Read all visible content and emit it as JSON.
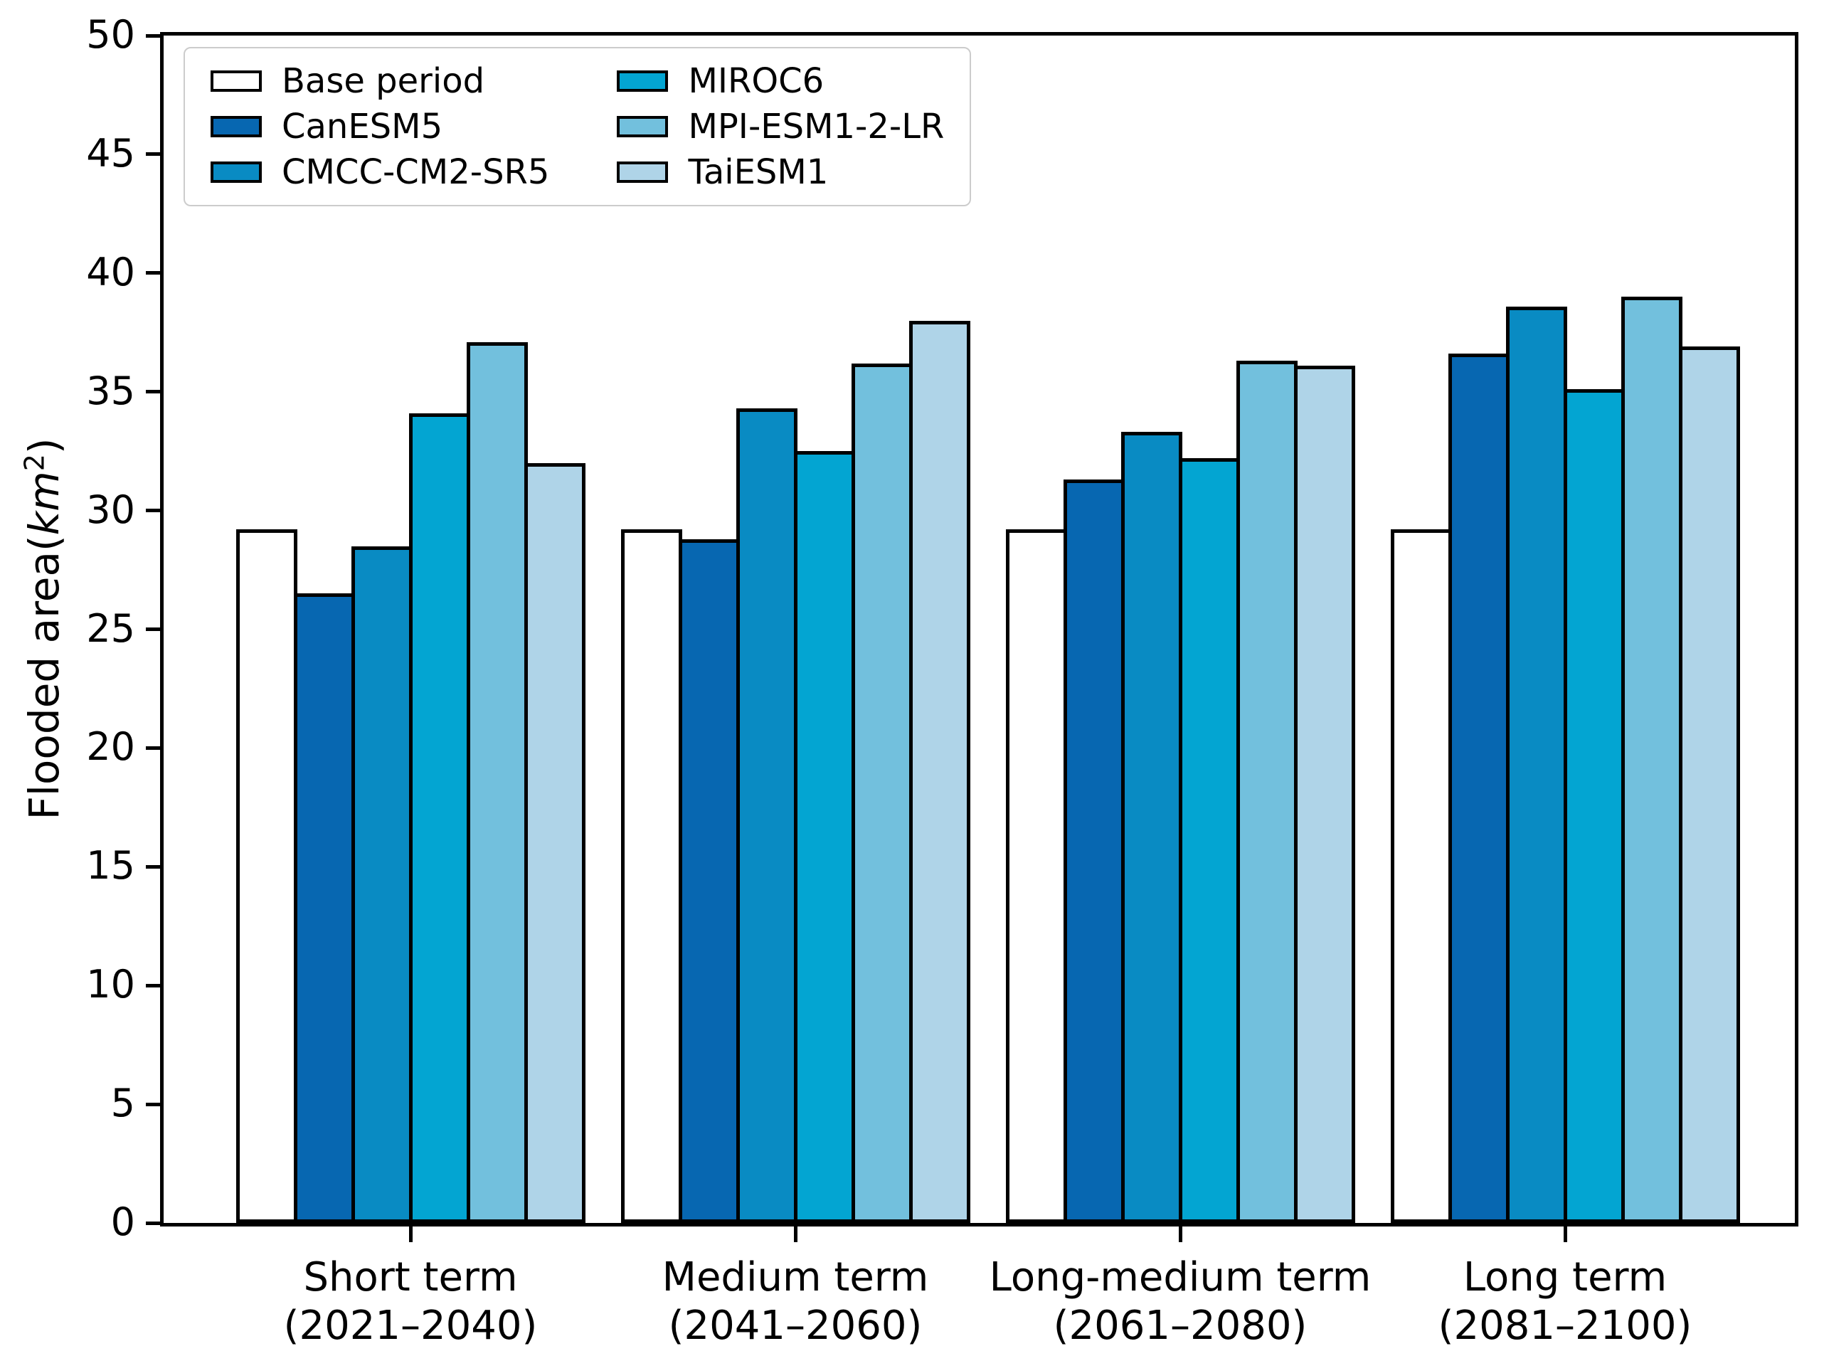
{
  "figure": {
    "background": "#ffffff"
  },
  "axis": {
    "y_label_prefix": "Flooded area(",
    "y_label_unit": "km",
    "y_label_exponent": "2",
    "y_label_suffix": ")",
    "y_ticks": [
      0,
      5,
      10,
      15,
      20,
      25,
      30,
      35,
      40,
      45,
      50
    ],
    "y_min": 0,
    "y_max": 50
  },
  "chart_data": {
    "type": "bar",
    "title": "",
    "xlabel": "",
    "ylabel": "Flooded area(km2)",
    "ylim": [
      0,
      50
    ],
    "grid": false,
    "legend_position": "upper left",
    "bar_edge_color": "#000000",
    "categories": [
      "Short term (2021–2040)",
      "Medium term (2041–2060)",
      "Long-medium term (2061–2080)",
      "Long term (2081–2100)"
    ],
    "category_lines": [
      [
        "Short term",
        "(2021–2040)"
      ],
      [
        "Medium term",
        "(2041–2060)"
      ],
      [
        "Long-medium term",
        "(2061–2080)"
      ],
      [
        "Long term",
        "(2081–2100)"
      ]
    ],
    "series": [
      {
        "name": "Base period",
        "color": "#ffffff",
        "values": [
          29.2,
          29.2,
          29.2,
          29.2
        ]
      },
      {
        "name": "CanESM5",
        "color": "#0767b1",
        "values": [
          26.5,
          28.8,
          31.3,
          36.6
        ]
      },
      {
        "name": "CMCC-CM2-SR5",
        "color": "#098bc3",
        "values": [
          28.5,
          34.3,
          33.3,
          38.6
        ]
      },
      {
        "name": "MIROC6",
        "color": "#03a5d2",
        "values": [
          34.1,
          32.5,
          32.2,
          35.1
        ]
      },
      {
        "name": "MPI-ESM1-2-LR",
        "color": "#72c0dd",
        "values": [
          37.1,
          36.2,
          36.3,
          39.0
        ]
      },
      {
        "name": "TaiESM1",
        "color": "#afd4e8",
        "values": [
          32.0,
          38.0,
          36.1,
          36.9
        ]
      }
    ]
  }
}
